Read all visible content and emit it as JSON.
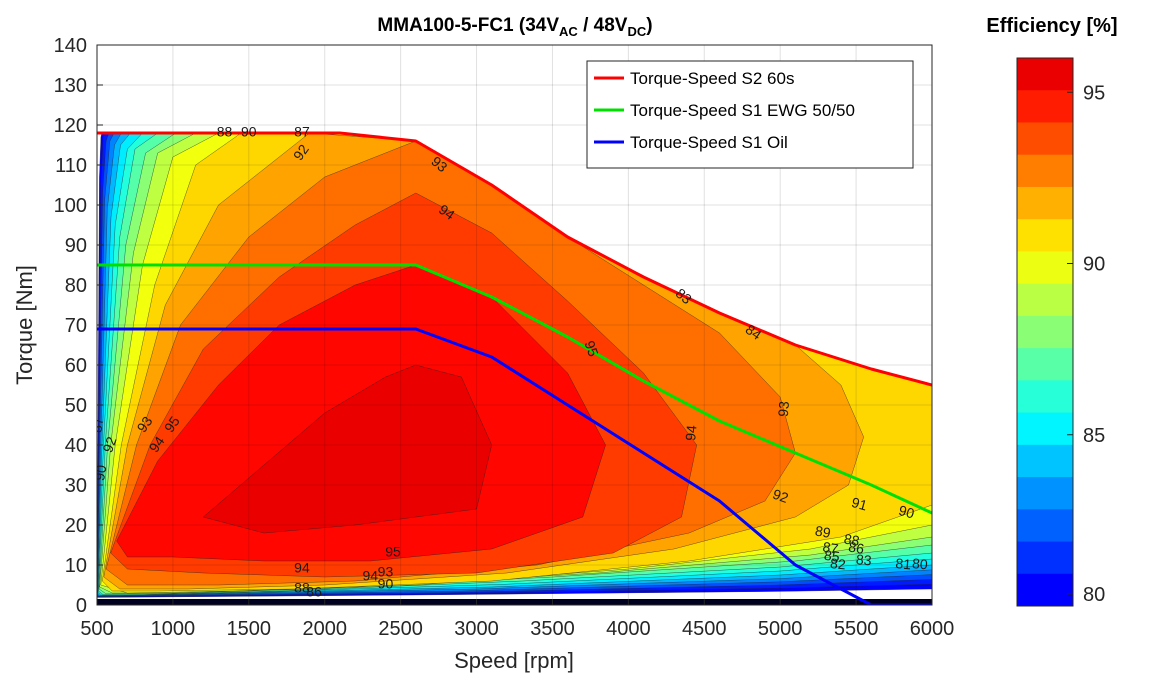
{
  "chart_data": {
    "type": "contour",
    "title_main": "MMA100-5-FC1 (34V",
    "title_sub1": "AC",
    "title_mid": " / 48V",
    "title_sub2": "DC",
    "title_end": ")",
    "xlabel": "Speed [rpm]",
    "ylabel": "Torque [Nm]",
    "xlim": [
      500,
      6000
    ],
    "ylim": [
      0,
      140
    ],
    "xticks": [
      500,
      1000,
      1500,
      2000,
      2500,
      3000,
      3500,
      4000,
      4500,
      5000,
      5500,
      6000
    ],
    "yticks": [
      0,
      10,
      20,
      30,
      40,
      50,
      60,
      70,
      80,
      90,
      100,
      110,
      120,
      130,
      140
    ],
    "grid": true,
    "legend_position": "top-right",
    "colorbar": {
      "title": "Efficiency [%]",
      "range": [
        80,
        96
      ],
      "ticks": [
        80,
        85,
        90,
        95
      ]
    },
    "series": [
      {
        "name": "Torque-Speed S2 60s",
        "color": "#ff0000",
        "x": [
          500,
          2100,
          2600,
          3100,
          3600,
          4100,
          4600,
          5100,
          5600,
          6000
        ],
        "y": [
          118,
          118,
          116,
          105,
          92,
          82,
          73,
          65,
          59,
          55
        ]
      },
      {
        "name": "Torque-Speed S1 EWG 50/50",
        "color": "#00e000",
        "x": [
          500,
          2600,
          3100,
          3600,
          4100,
          4600,
          5100,
          5600,
          6000
        ],
        "y": [
          85,
          85,
          77,
          67,
          56,
          46,
          38,
          30,
          23
        ]
      },
      {
        "name": "Torque-Speed S1 Oil",
        "color": "#0000ff",
        "x": [
          500,
          2600,
          3100,
          3600,
          4100,
          4600,
          5100,
          5600,
          6000
        ],
        "y": [
          69,
          69,
          62,
          50,
          38,
          26,
          10,
          0,
          0
        ]
      }
    ],
    "efficiency_regions": [
      {
        "level": 95.5,
        "x": [
          1200,
          1600,
          2000,
          2400,
          2600,
          2900,
          3100,
          3000,
          2200,
          1600,
          1200
        ],
        "y": [
          22,
          35,
          48,
          57,
          60,
          57,
          40,
          24,
          20,
          18,
          22
        ]
      },
      {
        "level": 95,
        "x": [
          630,
          900,
          1300,
          1700,
          2200,
          2600,
          3100,
          3600,
          3850,
          3700,
          3100,
          2300,
          1600,
          1000,
          700,
          630
        ],
        "y": [
          16,
          36,
          55,
          70,
          80,
          85,
          77,
          58,
          40,
          22,
          14,
          11,
          11,
          12,
          12,
          16
        ]
      },
      {
        "level": 94,
        "x": [
          590,
          850,
          1200,
          1700,
          2200,
          2600,
          3100,
          3600,
          4100,
          4450,
          4350,
          3900,
          3000,
          2000,
          1200,
          700,
          590
        ],
        "y": [
          13,
          40,
          64,
          82,
          95,
          103,
          93,
          76,
          58,
          40,
          22,
          13,
          8,
          7,
          8,
          9,
          13
        ]
      },
      {
        "level": 93,
        "x": [
          560,
          760,
          1050,
          1500,
          2000,
          2600,
          3100,
          3600,
          4100,
          4600,
          5000,
          5100,
          4900,
          4400,
          3400,
          2200,
          1300,
          700,
          560
        ],
        "y": [
          9,
          40,
          70,
          92,
          107,
          116,
          105,
          92,
          80,
          68,
          52,
          38,
          26,
          18,
          10,
          6,
          5,
          5,
          9
        ]
      },
      {
        "level": 92,
        "x": [
          545,
          700,
          950,
          1300,
          1700,
          1900,
          2600,
          3100,
          3600,
          4100,
          4600,
          5100,
          5400,
          5550,
          5450,
          5100,
          4300,
          3200,
          2000,
          1100,
          650,
          545
        ],
        "y": [
          7,
          40,
          75,
          100,
          112,
          118,
          116,
          105,
          92,
          82,
          73,
          65,
          55,
          42,
          30,
          22,
          14,
          8,
          5,
          4,
          4,
          7
        ]
      },
      {
        "level": 91,
        "x": [
          535,
          660,
          880,
          1150,
          1450,
          1500,
          2100,
          2600,
          3100,
          3600,
          4100,
          4600,
          5100,
          5600,
          6000,
          6000,
          5400,
          4400,
          3100,
          1800,
          900,
          600,
          535
        ],
        "y": [
          6,
          40,
          80,
          110,
          118,
          118,
          118,
          116,
          105,
          92,
          82,
          73,
          65,
          59,
          55,
          25,
          17,
          11,
          6,
          4,
          3.5,
          3.5,
          6
        ]
      },
      {
        "level": 90,
        "x": [
          525,
          620,
          800,
          1000,
          1300,
          2100,
          2600,
          3100,
          3600,
          4100,
          4600,
          5100,
          5600,
          6000,
          6000,
          5200,
          4000,
          2600,
          1400,
          700,
          525
        ],
        "y": [
          5,
          40,
          85,
          112,
          118,
          118,
          116,
          105,
          92,
          82,
          73,
          65,
          59,
          55,
          20,
          14,
          9,
          5,
          3.5,
          3,
          5
        ]
      },
      {
        "level": 89,
        "x": [
          518,
          590,
          740,
          900,
          1150,
          2100,
          2600,
          3100,
          3600,
          4100,
          4600,
          5100,
          5600,
          6000,
          6000,
          5200,
          3800,
          2200,
          1000,
          600,
          518
        ],
        "y": [
          4.5,
          40,
          88,
          113,
          118,
          118,
          116,
          105,
          92,
          82,
          73,
          65,
          59,
          55,
          17,
          12.5,
          8,
          4.5,
          3,
          3,
          4.5
        ]
      },
      {
        "level": 88,
        "x": [
          514,
          570,
          690,
          820,
          1020,
          2100,
          2600,
          3100,
          3600,
          4100,
          4600,
          5100,
          5600,
          6000,
          6000,
          5100,
          3500,
          1900,
          900,
          560,
          514
        ],
        "y": [
          4,
          40,
          90,
          113,
          118,
          118,
          116,
          105,
          92,
          82,
          73,
          65,
          59,
          55,
          15,
          11,
          7,
          4,
          2.8,
          2.8,
          4
        ]
      },
      {
        "level": 87,
        "x": [
          510,
          555,
          650,
          750,
          900,
          2100,
          2600,
          3100,
          3600,
          4100,
          4600,
          5100,
          5600,
          6000,
          6000,
          5000,
          3300,
          1700,
          800,
          540,
          510
        ],
        "y": [
          3.5,
          40,
          92,
          114,
          118,
          118,
          116,
          105,
          92,
          82,
          73,
          65,
          59,
          55,
          13,
          9.5,
          6,
          3.5,
          2.6,
          2.6,
          3.5
        ]
      },
      {
        "level": 86,
        "x": [
          507,
          543,
          620,
          700,
          800,
          2100,
          2600,
          3100,
          3600,
          4100,
          4600,
          5100,
          5600,
          6000,
          6000,
          5000,
          3200,
          1500,
          700,
          530,
          507
        ],
        "y": [
          3.2,
          40,
          95,
          114,
          118,
          118,
          116,
          105,
          92,
          82,
          73,
          65,
          59,
          55,
          11.5,
          8.5,
          5.2,
          3.2,
          2.5,
          2.5,
          3.2
        ]
      },
      {
        "level": 85,
        "x": [
          505,
          533,
          592,
          655,
          720,
          2100,
          2600,
          3100,
          3600,
          4100,
          4600,
          5100,
          5600,
          6000,
          6000,
          5000,
          3100,
          1400,
          650,
          520,
          505
        ],
        "y": [
          3,
          40,
          97,
          115,
          118,
          118,
          116,
          105,
          92,
          82,
          73,
          65,
          59,
          55,
          10,
          7.5,
          4.5,
          3,
          2.4,
          2.4,
          3
        ]
      },
      {
        "level": 84,
        "x": [
          504,
          525,
          568,
          615,
          660,
          2100,
          2600,
          3100,
          3600,
          4100,
          4600,
          5100,
          5600,
          6000,
          6000,
          5000,
          3000,
          1300,
          600,
          512,
          504
        ],
        "y": [
          2.8,
          40,
          99,
          115,
          118,
          118,
          116,
          105,
          92,
          82,
          73,
          65,
          59,
          55,
          8.8,
          6.6,
          4,
          2.8,
          2.3,
          2.3,
          2.8
        ]
      },
      {
        "level": 83,
        "x": [
          503,
          518,
          550,
          585,
          612,
          2100,
          2600,
          3100,
          3600,
          4100,
          4600,
          5100,
          5600,
          6000,
          6000,
          5000,
          2900,
          1200,
          570,
          508,
          503
        ],
        "y": [
          2.6,
          40,
          101,
          116,
          118,
          118,
          116,
          105,
          92,
          82,
          73,
          65,
          59,
          55,
          7.6,
          5.8,
          3.5,
          2.6,
          2.2,
          2.2,
          2.6
        ]
      },
      {
        "level": 82,
        "x": [
          502,
          513,
          537,
          560,
          578,
          2100,
          2600,
          3100,
          3600,
          4100,
          4600,
          5100,
          5600,
          6000,
          6000,
          5000,
          2800,
          1100,
          550,
          505,
          502
        ],
        "y": [
          2.4,
          40,
          103,
          116,
          118,
          118,
          116,
          105,
          92,
          82,
          73,
          65,
          59,
          55,
          6.4,
          5,
          3.1,
          2.4,
          2.1,
          2.1,
          2.4
        ]
      },
      {
        "level": 81,
        "x": [
          501,
          509,
          526,
          541,
          552,
          2100,
          2600,
          3100,
          3600,
          4100,
          4600,
          5100,
          5600,
          6000,
          6000,
          5000,
          2700,
          1000,
          530,
          503,
          501
        ],
        "y": [
          2.2,
          40,
          105,
          117,
          118,
          118,
          116,
          105,
          92,
          82,
          73,
          65,
          59,
          55,
          5.2,
          4.2,
          2.8,
          2.2,
          2,
          2,
          2.2
        ]
      },
      {
        "level": 80.5,
        "x": [
          500,
          506,
          516,
          526,
          532,
          2100,
          2600,
          3100,
          3600,
          4100,
          4600,
          5100,
          5600,
          6000,
          6000,
          5000,
          2600,
          900,
          515,
          501,
          500
        ],
        "y": [
          2,
          40,
          107,
          117,
          118,
          118,
          116,
          105,
          92,
          82,
          73,
          65,
          59,
          55,
          4,
          3.4,
          2.5,
          2,
          1.9,
          1.9,
          2
        ]
      }
    ],
    "contour_labels": [
      {
        "text": "95",
        "x": 1000,
        "y": 45,
        "angle": -55
      },
      {
        "text": "95",
        "x": 3750,
        "y": 64,
        "angle": 70
      },
      {
        "text": "95",
        "x": 2450,
        "y": 13,
        "angle": 0
      },
      {
        "text": "94",
        "x": 900,
        "y": 40,
        "angle": -55
      },
      {
        "text": "94",
        "x": 2800,
        "y": 98,
        "angle": 35
      },
      {
        "text": "94",
        "x": 4420,
        "y": 43,
        "angle": -85
      },
      {
        "text": "94",
        "x": 1850,
        "y": 9,
        "angle": 0
      },
      {
        "text": "94",
        "x": 2300,
        "y": 7,
        "angle": 0
      },
      {
        "text": "93",
        "x": 820,
        "y": 45,
        "angle": -55
      },
      {
        "text": "93",
        "x": 2750,
        "y": 110,
        "angle": 40
      },
      {
        "text": "93",
        "x": 5030,
        "y": 49,
        "angle": -85
      },
      {
        "text": "93",
        "x": 2400,
        "y": 8,
        "angle": 0
      },
      {
        "text": "92",
        "x": 590,
        "y": 40,
        "angle": -70
      },
      {
        "text": "92",
        "x": 1850,
        "y": 113,
        "angle": -55
      },
      {
        "text": "92",
        "x": 5000,
        "y": 27,
        "angle": 20
      },
      {
        "text": "91",
        "x": 5520,
        "y": 25,
        "angle": 15
      },
      {
        "text": "90",
        "x": 530,
        "y": 33,
        "angle": -80
      },
      {
        "text": "90",
        "x": 1500,
        "y": 118,
        "angle": 0
      },
      {
        "text": "90",
        "x": 5830,
        "y": 23,
        "angle": 15
      },
      {
        "text": "90",
        "x": 2400,
        "y": 5,
        "angle": 0
      },
      {
        "text": "89",
        "x": 5280,
        "y": 18,
        "angle": 10
      },
      {
        "text": "88",
        "x": 5470,
        "y": 16,
        "angle": 10
      },
      {
        "text": "87",
        "x": 5330,
        "y": 14,
        "angle": 10
      },
      {
        "text": "86",
        "x": 5500,
        "y": 14,
        "angle": 10
      },
      {
        "text": "85",
        "x": 5340,
        "y": 12,
        "angle": 8
      },
      {
        "text": "83",
        "x": 5550,
        "y": 11,
        "angle": 5
      },
      {
        "text": "82",
        "x": 5380,
        "y": 10,
        "angle": 5
      },
      {
        "text": "81",
        "x": 5810,
        "y": 10,
        "angle": 5
      },
      {
        "text": "80",
        "x": 5920,
        "y": 10,
        "angle": 5
      },
      {
        "text": "86",
        "x": 1930,
        "y": 3,
        "angle": 0
      },
      {
        "text": "88",
        "x": 1850,
        "y": 4,
        "angle": 0
      },
      {
        "text": "88",
        "x": 1340,
        "y": 118,
        "angle": 0
      },
      {
        "text": "87",
        "x": 1850,
        "y": 118,
        "angle": 0
      },
      {
        "text": "83",
        "x": 4360,
        "y": 77,
        "angle": 40
      },
      {
        "text": "84",
        "x": 4820,
        "y": 68,
        "angle": 35
      },
      {
        "text": "87",
        "x": 510,
        "y": 45,
        "angle": -85
      }
    ]
  }
}
